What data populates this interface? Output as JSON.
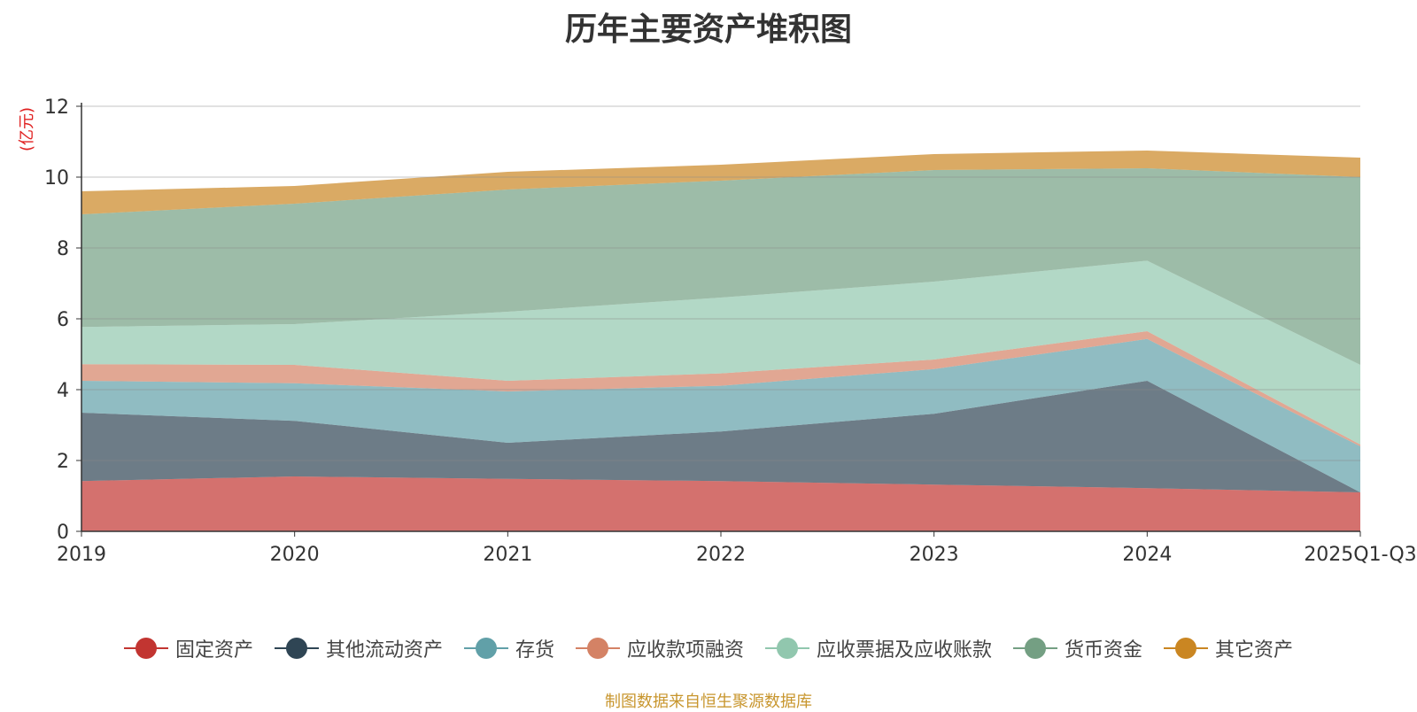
{
  "chart_data": {
    "type": "area",
    "stacked": true,
    "title": "历年主要资产堆积图",
    "ylabel": "(亿元)",
    "xlabel": "",
    "categories": [
      "2019",
      "2020",
      "2021",
      "2022",
      "2023",
      "2024",
      "2025Q1-Q3"
    ],
    "ylim": [
      0,
      12
    ],
    "yticks": [
      0,
      2,
      4,
      6,
      8,
      10,
      12
    ],
    "grid": true,
    "legend_position": "bottom",
    "series": [
      {
        "name": "固定资产",
        "color": "#c23531",
        "values": [
          1.42,
          1.55,
          1.48,
          1.42,
          1.32,
          1.22,
          1.1
        ]
      },
      {
        "name": "其他流动资产",
        "color": "#2f4554",
        "values": [
          1.93,
          1.57,
          1.02,
          1.4,
          2.0,
          3.03,
          0.0
        ]
      },
      {
        "name": "存货",
        "color": "#61a0a8",
        "values": [
          0.9,
          1.06,
          1.45,
          1.29,
          1.26,
          1.18,
          1.3
        ]
      },
      {
        "name": "应收款项融资",
        "color": "#d48265",
        "values": [
          0.47,
          0.52,
          0.3,
          0.35,
          0.27,
          0.22,
          0.05
        ]
      },
      {
        "name": "应收票据及应收账款",
        "color": "#91c7ae",
        "values": [
          1.05,
          1.15,
          1.95,
          2.14,
          2.2,
          1.99,
          2.25
        ]
      },
      {
        "name": "货币资金",
        "color": "#749f83",
        "values": [
          3.18,
          3.4,
          3.45,
          3.3,
          3.15,
          2.61,
          5.3
        ]
      },
      {
        "name": "其它资产",
        "color": "#ca8622",
        "values": [
          0.65,
          0.5,
          0.5,
          0.45,
          0.45,
          0.5,
          0.55
        ]
      }
    ]
  },
  "footer": {
    "source": "制图数据来自恒生聚源数据库"
  }
}
